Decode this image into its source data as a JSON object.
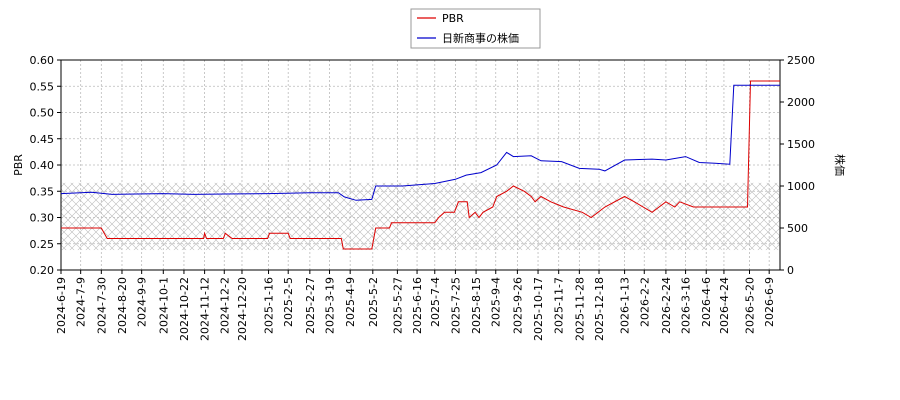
{
  "chart_data": {
    "type": "line",
    "y_label": "PBR",
    "y2_label": "株価",
    "xlim": [
      "2024-6-19",
      "2026-6-20"
    ],
    "xticks": [
      "2024-6-19",
      "2024-7-9",
      "2024-7-30",
      "2024-8-20",
      "2024-9-9",
      "2024-10-1",
      "2024-10-22",
      "2024-11-12",
      "2024-12-2",
      "2024-12-20",
      "2025-1-16",
      "2025-2-5",
      "2025-2-27",
      "2025-3-19",
      "2025-4-9",
      "2025-5-2",
      "2025-5-27",
      "2025-6-16",
      "2025-7-4",
      "2025-7-25",
      "2025-8-15",
      "2025-9-4",
      "2025-9-26",
      "2025-10-17",
      "2025-11-7",
      "2025-11-28",
      "2025-12-18",
      "2026-1-13",
      "2026-2-2",
      "2026-2-24",
      "2026-3-16",
      "2026-4-6",
      "2026-4-24",
      "2026-5-20",
      "2026-6-9"
    ],
    "ylim": [
      0.2,
      0.6
    ],
    "yticks": [
      {
        "value": 0.2,
        "label": "0.20"
      },
      0.25,
      {
        "value": 0.3,
        "label": "0.30"
      },
      0.35,
      {
        "value": 0.4,
        "label": "0.40"
      },
      0.45,
      {
        "value": 0.5,
        "label": "0.50"
      },
      0.55,
      {
        "value": 0.6,
        "label": "0.60"
      }
    ],
    "y2lim": [
      0,
      2500
    ],
    "y2ticks": [
      0,
      500,
      1000,
      1500,
      2000,
      2500
    ],
    "grid": true,
    "legend": "top",
    "band_ylim": [
      0.238,
      0.366
    ],
    "series": [
      {
        "name": "PBR",
        "color": "#dd0000",
        "axis": "y",
        "x": [
          "2024-6-19",
          "2024-7-30",
          "2024-8-5",
          "2024-11-11",
          "2024-11-12",
          "2024-11-14",
          "2024-12-1",
          "2024-12-3",
          "2024-12-10",
          "2025-1-15",
          "2025-1-17",
          "2025-2-5",
          "2025-2-7",
          "2025-3-31",
          "2025-4-2",
          "2025-5-1",
          "2025-5-5",
          "2025-5-19",
          "2025-5-21",
          "2025-7-4",
          "2025-7-8",
          "2025-7-14",
          "2025-7-24",
          "2025-7-28",
          "2025-8-6",
          "2025-8-8",
          "2025-8-14",
          "2025-8-18",
          "2025-8-22",
          "2025-9-1",
          "2025-9-5",
          "2025-9-15",
          "2025-9-22",
          "2025-10-3",
          "2025-10-10",
          "2025-10-14",
          "2025-10-20",
          "2025-10-30",
          "2025-11-12",
          "2025-12-1",
          "2025-12-10",
          "2025-12-24",
          "2026-1-13",
          "2026-1-23",
          "2026-2-10",
          "2026-2-24",
          "2026-3-5",
          "2026-3-10",
          "2026-3-24",
          "2026-5-18",
          "2026-5-21",
          "2026-6-20"
        ],
        "values": [
          0.28,
          0.28,
          0.26,
          0.26,
          0.27,
          0.26,
          0.26,
          0.27,
          0.26,
          0.26,
          0.27,
          0.27,
          0.26,
          0.26,
          0.24,
          0.24,
          0.28,
          0.28,
          0.29,
          0.29,
          0.3,
          0.31,
          0.31,
          0.33,
          0.33,
          0.3,
          0.31,
          0.3,
          0.31,
          0.32,
          0.34,
          0.35,
          0.36,
          0.35,
          0.34,
          0.33,
          0.34,
          0.33,
          0.32,
          0.31,
          0.3,
          0.32,
          0.34,
          0.33,
          0.31,
          0.33,
          0.32,
          0.33,
          0.32,
          0.32,
          0.56,
          0.56
        ]
      },
      {
        "name": "日新商事の株価",
        "color": "#0000cc",
        "axis": "y2",
        "x": [
          "2024-6-19",
          "2024-7-20",
          "2024-8-10",
          "2024-10-1",
          "2024-11-1",
          "2024-12-2",
          "2025-1-16",
          "2025-2-27",
          "2025-3-28",
          "2025-4-3",
          "2025-4-15",
          "2025-5-1",
          "2025-5-5",
          "2025-6-1",
          "2025-7-4",
          "2025-7-25",
          "2025-8-5",
          "2025-8-20",
          "2025-9-5",
          "2025-9-15",
          "2025-9-22",
          "2025-10-10",
          "2025-10-20",
          "2025-11-10",
          "2025-11-28",
          "2025-12-18",
          "2025-12-24",
          "2026-1-13",
          "2026-2-10",
          "2026-2-24",
          "2026-3-16",
          "2026-3-30",
          "2026-4-15",
          "2026-4-30",
          "2026-5-4",
          "2026-6-20"
        ],
        "values": [
          910,
          925,
          900,
          910,
          900,
          905,
          910,
          920,
          920,
          870,
          830,
          840,
          1000,
          1000,
          1030,
          1080,
          1130,
          1160,
          1250,
          1400,
          1350,
          1360,
          1300,
          1290,
          1210,
          1200,
          1180,
          1310,
          1320,
          1310,
          1350,
          1280,
          1270,
          1260,
          2200,
          2200
        ]
      }
    ]
  }
}
